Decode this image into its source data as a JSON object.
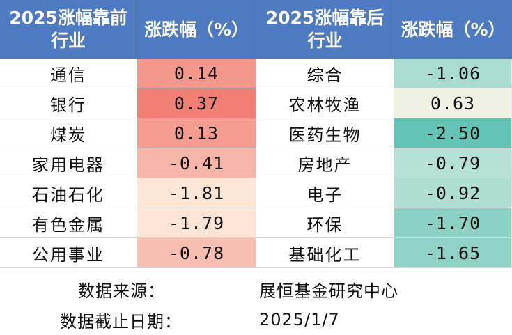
{
  "headers": {
    "top_industry_line1": "2025涨幅靠前",
    "top_industry_line2": "行业",
    "top_change": "涨跌幅（%）",
    "bottom_industry_line1": "2025涨幅靠后",
    "bottom_industry_line2": "行业",
    "bottom_change": "涨跌幅（%）"
  },
  "rows": [
    {
      "top_name": "通信",
      "top_val": "0.14",
      "top_color": "#f4988c",
      "bot_name": "综合",
      "bot_val": "-1.06",
      "bot_color": "#a9dcd0"
    },
    {
      "top_name": "银行",
      "top_val": "0.37",
      "top_color": "#f27f74",
      "bot_name": "农林牧渔",
      "bot_val": "0.63",
      "bot_color": "#f0f3e4"
    },
    {
      "top_name": "煤炭",
      "top_val": "0.13",
      "top_color": "#f49c90",
      "bot_name": "医药生物",
      "bot_val": "-2.50",
      "bot_color": "#63c4b5"
    },
    {
      "top_name": "家用电器",
      "top_val": "-0.41",
      "top_color": "#f8b6aa",
      "bot_name": "房地产",
      "bot_val": "-0.79",
      "bot_color": "#b5e1d6"
    },
    {
      "top_name": "石油石化",
      "top_val": "-1.81",
      "top_color": "#fde6d6",
      "bot_name": "电子",
      "bot_val": "-0.92",
      "bot_color": "#afdfd3"
    },
    {
      "top_name": "有色金属",
      "top_val": "-1.79",
      "top_color": "#fde4d4",
      "bot_name": "环保",
      "bot_val": "-1.70",
      "bot_color": "#8bd1c4"
    },
    {
      "top_name": "公用事业",
      "top_val": "-0.78",
      "top_color": "#f9bfb2",
      "bot_name": "基础化工",
      "bot_val": "-1.65",
      "bot_color": "#8dd2c5"
    }
  ],
  "footer": {
    "source_label": "数据来源：",
    "source_value": "展恒基金研究中心",
    "date_label": "数据截止日期：",
    "date_value": "2025/1/7"
  },
  "colors": {
    "header_bg": "#4e7ac1"
  }
}
